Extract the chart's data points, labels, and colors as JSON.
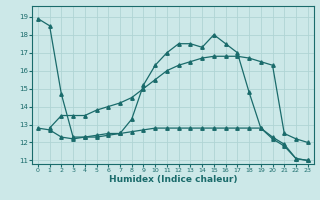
{
  "xlabel": "Humidex (Indice chaleur)",
  "background_color": "#cce8e8",
  "grid_color": "#b0d4d4",
  "line_color": "#1a6b6b",
  "xlim": [
    -0.5,
    23.5
  ],
  "ylim": [
    10.8,
    19.6
  ],
  "yticks": [
    11,
    12,
    13,
    14,
    15,
    16,
    17,
    18,
    19
  ],
  "xticks": [
    0,
    1,
    2,
    3,
    4,
    5,
    6,
    7,
    8,
    9,
    10,
    11,
    12,
    13,
    14,
    15,
    16,
    17,
    18,
    19,
    20,
    21,
    22,
    23
  ],
  "x": [
    0,
    1,
    2,
    3,
    4,
    5,
    6,
    7,
    8,
    9,
    10,
    11,
    12,
    13,
    14,
    15,
    16,
    17,
    18,
    19,
    20,
    21,
    22,
    23
  ],
  "line1": [
    18.9,
    18.5,
    14.7,
    12.3,
    12.3,
    12.4,
    12.5,
    12.5,
    13.3,
    15.2,
    16.3,
    17.0,
    17.5,
    17.5,
    17.3,
    18.0,
    17.5,
    17.0,
    14.8,
    12.8,
    12.2,
    11.8,
    11.1,
    11.0
  ],
  "line2": [
    12.8,
    12.7,
    12.3,
    12.2,
    12.3,
    12.3,
    12.4,
    12.5,
    12.6,
    12.7,
    12.8,
    12.8,
    12.8,
    12.8,
    12.8,
    12.8,
    12.8,
    12.8,
    12.8,
    12.8,
    12.3,
    11.9,
    11.1,
    11.0
  ],
  "line3": [
    null,
    12.8,
    13.5,
    13.5,
    13.5,
    13.8,
    14.0,
    14.2,
    14.5,
    15.0,
    15.5,
    16.0,
    16.3,
    16.5,
    16.7,
    16.8,
    16.8,
    16.8,
    16.7,
    16.5,
    16.3,
    12.5,
    12.2,
    12.0
  ]
}
